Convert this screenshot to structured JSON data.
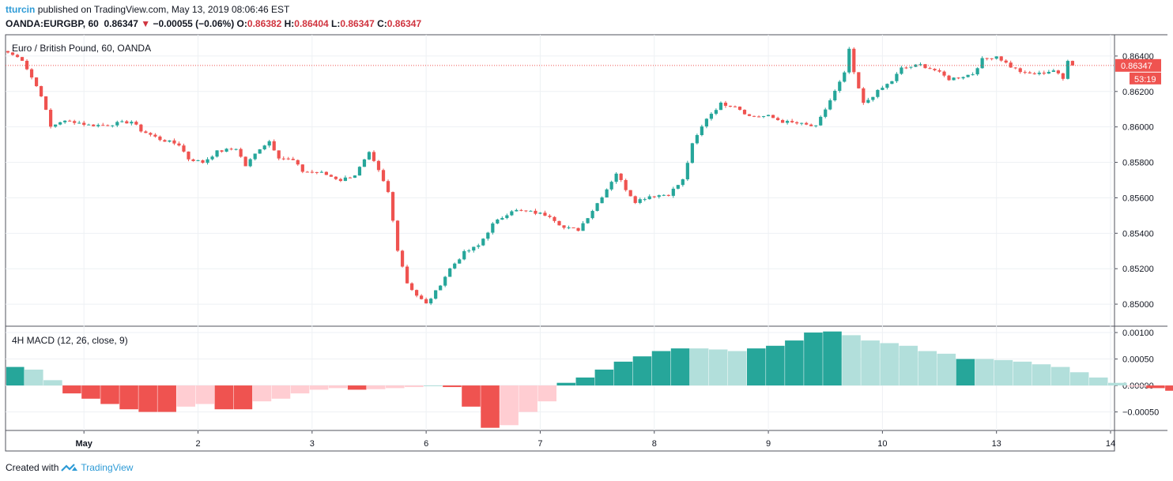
{
  "header": {
    "author": "tturcin",
    "published_text": "published on TradingView.com, May 13, 2019 08:06:46 EST"
  },
  "info": {
    "symbol": "OANDA:EURGBP, 60",
    "last": "0.86347",
    "arrow": "▼",
    "change": "−0.00055 (−0.06%)",
    "o_label": "O:",
    "o_value": "0.86382",
    "h_label": "H:",
    "h_value": "0.86404",
    "l_label": "L:",
    "l_value": "0.86347",
    "c_label": "C:",
    "c_value": "0.86347"
  },
  "footer": {
    "created_with": "Created with",
    "brand": "TradingView"
  },
  "colors": {
    "up": "#26a69a",
    "down": "#ef5350",
    "macd_up_strong": "#26a69a",
    "macd_up_weak": "#b2dfdb",
    "macd_down_strong": "#ef5350",
    "macd_down_weak": "#ffcdd2",
    "grid": "#eef1f4",
    "axis": "#50535e"
  },
  "chart_data": [
    {
      "type": "candlestick",
      "title": "Euro / British Pound, 60, OANDA",
      "ylim": [
        0.8488,
        0.8652
      ],
      "y_ticks": [
        0.864,
        0.862,
        0.86,
        0.858,
        0.856,
        0.854,
        0.852,
        0.85
      ],
      "y_tick_labels": [
        "0.86400",
        "0.86200",
        "0.86000",
        "0.85800",
        "0.85600",
        "0.85400",
        "0.85200",
        "0.85000"
      ],
      "x_index_range": [
        0,
        232
      ],
      "x_ticks": [
        {
          "label": "May",
          "index": 16
        },
        {
          "label": "2",
          "index": 40
        },
        {
          "label": "3",
          "index": 64
        },
        {
          "label": "6",
          "index": 88
        },
        {
          "label": "7",
          "index": 112
        },
        {
          "label": "8",
          "index": 136
        },
        {
          "label": "9",
          "index": 160
        },
        {
          "label": "10",
          "index": 184
        },
        {
          "label": "13",
          "index": 208
        },
        {
          "label": "14",
          "index": 232
        }
      ],
      "last_price": 0.86347,
      "last_price_label": "0.86347",
      "countdown_label": "53:19",
      "price_path_note": "approximate hourly closes read from the chart",
      "anchors": [
        [
          0,
          0.8642
        ],
        [
          3,
          0.8638
        ],
        [
          5,
          0.8628
        ],
        [
          7,
          0.8618
        ],
        [
          9,
          0.86
        ],
        [
          11,
          0.8603
        ],
        [
          14,
          0.8603
        ],
        [
          17,
          0.8601
        ],
        [
          20,
          0.8601
        ],
        [
          26,
          0.8603
        ],
        [
          28,
          0.8598
        ],
        [
          32,
          0.8593
        ],
        [
          36,
          0.859
        ],
        [
          38,
          0.8582
        ],
        [
          41,
          0.858
        ],
        [
          44,
          0.8586
        ],
        [
          48,
          0.8588
        ],
        [
          50,
          0.8578
        ],
        [
          53,
          0.8588
        ],
        [
          55,
          0.8592
        ],
        [
          57,
          0.8583
        ],
        [
          60,
          0.8581
        ],
        [
          62,
          0.8575
        ],
        [
          66,
          0.8574
        ],
        [
          70,
          0.857
        ],
        [
          73,
          0.8573
        ],
        [
          76,
          0.8585
        ],
        [
          78,
          0.8575
        ],
        [
          80,
          0.8563
        ],
        [
          82,
          0.8531
        ],
        [
          84,
          0.8512
        ],
        [
          86,
          0.8505
        ],
        [
          88,
          0.85
        ],
        [
          90,
          0.8507
        ],
        [
          93,
          0.852
        ],
        [
          96,
          0.8529
        ],
        [
          99,
          0.8533
        ],
        [
          102,
          0.8545
        ],
        [
          106,
          0.8553
        ],
        [
          110,
          0.8552
        ],
        [
          114,
          0.855
        ],
        [
          117,
          0.8543
        ],
        [
          120,
          0.8542
        ],
        [
          123,
          0.8553
        ],
        [
          126,
          0.8565
        ],
        [
          128,
          0.8574
        ],
        [
          130,
          0.8565
        ],
        [
          132,
          0.8558
        ],
        [
          135,
          0.8561
        ],
        [
          139,
          0.8562
        ],
        [
          142,
          0.857
        ],
        [
          144,
          0.859
        ],
        [
          147,
          0.8605
        ],
        [
          150,
          0.8613
        ],
        [
          153,
          0.8612
        ],
        [
          156,
          0.8606
        ],
        [
          160,
          0.8606
        ],
        [
          163,
          0.8603
        ],
        [
          166,
          0.8602
        ],
        [
          170,
          0.86
        ],
        [
          172,
          0.861
        ],
        [
          174,
          0.862
        ],
        [
          176,
          0.863
        ],
        [
          177,
          0.8644
        ],
        [
          178,
          0.863
        ],
        [
          180,
          0.8613
        ],
        [
          183,
          0.862
        ],
        [
          186,
          0.8626
        ],
        [
          188,
          0.8633
        ],
        [
          192,
          0.8635
        ],
        [
          195,
          0.8632
        ],
        [
          198,
          0.8627
        ],
        [
          200,
          0.8628
        ],
        [
          203,
          0.863
        ],
        [
          205,
          0.8638
        ],
        [
          208,
          0.864
        ],
        [
          211,
          0.8634
        ],
        [
          214,
          0.863
        ],
        [
          217,
          0.863
        ],
        [
          220,
          0.8632
        ],
        [
          222,
          0.8627
        ],
        [
          223,
          0.8638
        ],
        [
          224,
          0.86347
        ]
      ]
    },
    {
      "type": "bar",
      "title": "4H MACD (12, 26, close, 9)",
      "ylim": [
        -0.00085,
        0.00112
      ],
      "y_ticks": [
        0.001,
        0.0005,
        0,
        -0.0005
      ],
      "y_tick_labels": [
        "0.00100",
        "0.00050",
        "0.00000",
        "−0.00050"
      ],
      "bar_width_hours": 4,
      "first_bar_index": 0,
      "values": [
        0.00035,
        0.0003,
        0.0001,
        -0.00015,
        -0.00025,
        -0.00035,
        -0.00045,
        -0.0005,
        -0.0005,
        -0.0004,
        -0.00035,
        -0.00045,
        -0.00045,
        -0.0003,
        -0.00025,
        -0.00015,
        -8e-05,
        -5e-05,
        -8e-05,
        -7e-05,
        -5e-05,
        -3e-05,
        0.0,
        -3e-05,
        -0.0004,
        -0.0008,
        -0.00075,
        -0.0005,
        -0.0003,
        5e-05,
        0.00015,
        0.0003,
        0.00045,
        0.00055,
        0.00065,
        0.0007,
        0.0007,
        0.00068,
        0.00065,
        0.0007,
        0.00075,
        0.00085,
        0.001,
        0.00102,
        0.00095,
        0.00085,
        0.0008,
        0.00075,
        0.00065,
        0.0006,
        0.0005,
        0.0005,
        0.00048,
        0.00045,
        0.0004,
        0.00035,
        0.00025,
        0.00015,
        5e-05,
        -2e-05,
        -5e-05,
        -0.0001
      ],
      "shades": [
        "S",
        "W",
        "W",
        "S",
        "S",
        "S",
        "S",
        "S",
        "S",
        "W",
        "W",
        "S",
        "S",
        "W",
        "W",
        "W",
        "W",
        "W",
        "S",
        "W",
        "W",
        "W",
        "W",
        "S",
        "S",
        "S",
        "W",
        "W",
        "W",
        "S",
        "S",
        "S",
        "S",
        "S",
        "S",
        "S",
        "W",
        "W",
        "W",
        "S",
        "S",
        "S",
        "S",
        "S",
        "W",
        "W",
        "W",
        "W",
        "W",
        "W",
        "S",
        "W",
        "W",
        "W",
        "W",
        "W",
        "W",
        "W",
        "W",
        "W",
        "S",
        "S"
      ]
    }
  ]
}
